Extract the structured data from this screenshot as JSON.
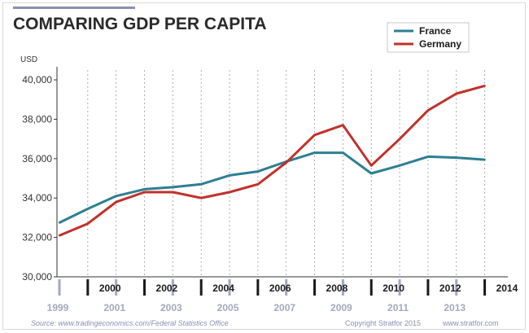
{
  "chart_data": {
    "type": "line",
    "title": "COMPARING GDP PER CAPITA",
    "ylabel": "USD",
    "xlabel": "",
    "ylim": [
      30000,
      40500
    ],
    "xlim": [
      1999,
      2014.5
    ],
    "y_ticks": [
      "30,000",
      "32,000",
      "34,000",
      "36,000",
      "38,000",
      "40,000"
    ],
    "y_tick_values": [
      30000,
      32000,
      34000,
      36000,
      38000,
      40000
    ],
    "x_ticks": [
      "1999",
      "2000",
      "2001",
      "2002",
      "2003",
      "2004",
      "2005",
      "2006",
      "2007",
      "2008",
      "2009",
      "2010",
      "2011",
      "2012",
      "2013",
      "2014"
    ],
    "grid": "vertical",
    "legend_position": "top-right",
    "x": [
      1999,
      2000,
      2001,
      2002,
      2003,
      2004,
      2005,
      2006,
      2007,
      2008,
      2009,
      2010,
      2011,
      2012,
      2013,
      2014
    ],
    "series": [
      {
        "name": "France",
        "color": "#2d7f93",
        "values": [
          32750,
          33450,
          34100,
          34450,
          34550,
          34700,
          35150,
          35350,
          35850,
          36300,
          36300,
          35250,
          35650,
          36100,
          36050,
          35950
        ]
      },
      {
        "name": "Germany",
        "color": "#c0312b",
        "values": [
          32100,
          32700,
          33800,
          34300,
          34300,
          34000,
          34300,
          34700,
          35800,
          37200,
          37700,
          35650,
          37000,
          38450,
          39300,
          39700
        ]
      }
    ]
  },
  "source_text": "Source: www.tradingeconomics.com/Federal Statistics Office",
  "copyright_text": "Copyright Stratfor 2015",
  "website_text": "www.stratfor.com",
  "title_rule_color": "#8a8fb5"
}
